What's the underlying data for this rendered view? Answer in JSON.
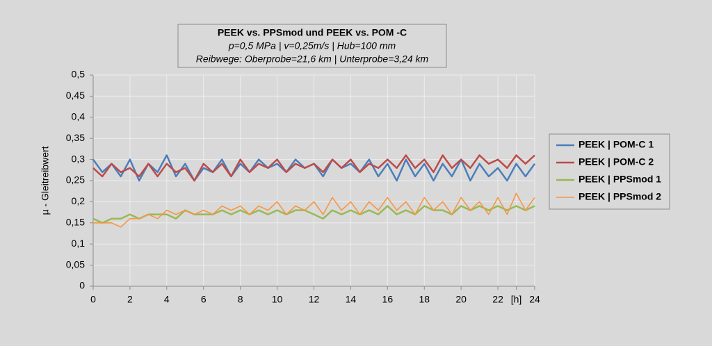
{
  "chart_data": {
    "type": "line",
    "title": "PEEK vs. PPSmod und PEEK vs. POM -C",
    "subtitle": [
      "p=0,5 MPa | v=0,25m/s | Hub=100 mm",
      "Reibwege: Oberprobe=21,6 km | Unterprobe=3,24 km"
    ],
    "y_label": "µ - Gleitreibwert",
    "x": [
      0,
      0.5,
      1,
      1.5,
      2,
      2.5,
      3,
      3.5,
      4,
      4.5,
      5,
      5.5,
      6,
      6.5,
      7,
      7.5,
      8,
      8.5,
      9,
      9.5,
      10,
      10.5,
      11,
      11.5,
      12,
      12.5,
      13,
      13.5,
      14,
      14.5,
      15,
      15.5,
      16,
      16.5,
      17,
      17.5,
      18,
      18.5,
      19,
      19.5,
      20,
      20.5,
      21,
      21.5,
      22,
      22.5,
      23,
      23.5,
      24
    ],
    "series": [
      {
        "name": "PEEK | POM-C 1",
        "color": "#4a7ebb",
        "values": [
          0.3,
          0.27,
          0.29,
          0.26,
          0.3,
          0.25,
          0.29,
          0.27,
          0.31,
          0.26,
          0.29,
          0.25,
          0.28,
          0.27,
          0.3,
          0.26,
          0.29,
          0.27,
          0.3,
          0.28,
          0.29,
          0.27,
          0.3,
          0.28,
          0.29,
          0.26,
          0.3,
          0.28,
          0.29,
          0.27,
          0.3,
          0.26,
          0.29,
          0.25,
          0.3,
          0.26,
          0.29,
          0.25,
          0.29,
          0.26,
          0.3,
          0.25,
          0.29,
          0.26,
          0.28,
          0.25,
          0.29,
          0.26,
          0.29
        ]
      },
      {
        "name": "PEEK | POM-C 2",
        "color": "#be4b48",
        "values": [
          0.28,
          0.26,
          0.29,
          0.27,
          0.28,
          0.26,
          0.29,
          0.26,
          0.29,
          0.27,
          0.28,
          0.25,
          0.29,
          0.27,
          0.29,
          0.26,
          0.3,
          0.27,
          0.29,
          0.28,
          0.3,
          0.27,
          0.29,
          0.28,
          0.29,
          0.27,
          0.3,
          0.28,
          0.3,
          0.27,
          0.29,
          0.28,
          0.3,
          0.28,
          0.31,
          0.28,
          0.3,
          0.27,
          0.31,
          0.28,
          0.3,
          0.28,
          0.31,
          0.29,
          0.3,
          0.28,
          0.31,
          0.29,
          0.31
        ]
      },
      {
        "name": "PEEK | PPSmod 1",
        "color": "#98b954",
        "values": [
          0.16,
          0.15,
          0.16,
          0.16,
          0.17,
          0.16,
          0.17,
          0.17,
          0.17,
          0.16,
          0.18,
          0.17,
          0.17,
          0.17,
          0.18,
          0.17,
          0.18,
          0.17,
          0.18,
          0.17,
          0.18,
          0.17,
          0.18,
          0.18,
          0.17,
          0.16,
          0.18,
          0.17,
          0.18,
          0.17,
          0.18,
          0.17,
          0.19,
          0.17,
          0.18,
          0.17,
          0.19,
          0.18,
          0.18,
          0.17,
          0.19,
          0.18,
          0.19,
          0.18,
          0.19,
          0.18,
          0.19,
          0.18,
          0.19
        ]
      },
      {
        "name": "PEEK | PPSmod 2",
        "color": "#f79646",
        "values": [
          0.15,
          0.15,
          0.15,
          0.14,
          0.16,
          0.16,
          0.17,
          0.16,
          0.18,
          0.17,
          0.18,
          0.17,
          0.18,
          0.17,
          0.19,
          0.18,
          0.19,
          0.17,
          0.19,
          0.18,
          0.2,
          0.17,
          0.19,
          0.18,
          0.2,
          0.17,
          0.21,
          0.18,
          0.2,
          0.17,
          0.2,
          0.18,
          0.21,
          0.18,
          0.2,
          0.17,
          0.21,
          0.18,
          0.2,
          0.17,
          0.21,
          0.18,
          0.2,
          0.17,
          0.21,
          0.17,
          0.22,
          0.18,
          0.21
        ]
      }
    ],
    "xlim": [
      0,
      24
    ],
    "xticks": [
      0,
      2,
      4,
      6,
      8,
      10,
      12,
      14,
      16,
      18,
      20,
      22,
      {
        "value": 23,
        "label": "[h]"
      },
      24
    ],
    "ylim": [
      0,
      0.5
    ],
    "yticks": [
      0,
      {
        "value": 0.05,
        "label": "0,05"
      },
      {
        "value": 0.1,
        "label": "0,1"
      },
      {
        "value": 0.15,
        "label": "0,15"
      },
      {
        "value": 0.2,
        "label": "0,2"
      },
      {
        "value": 0.25,
        "label": "0,25"
      },
      {
        "value": 0.3,
        "label": "0,3"
      },
      {
        "value": 0.35,
        "label": "0,35"
      },
      {
        "value": 0.4,
        "label": "0,4"
      },
      {
        "value": 0.45,
        "label": "0,45"
      },
      {
        "value": 0.5,
        "label": "0,5"
      }
    ],
    "grid": true,
    "legend": "right"
  }
}
